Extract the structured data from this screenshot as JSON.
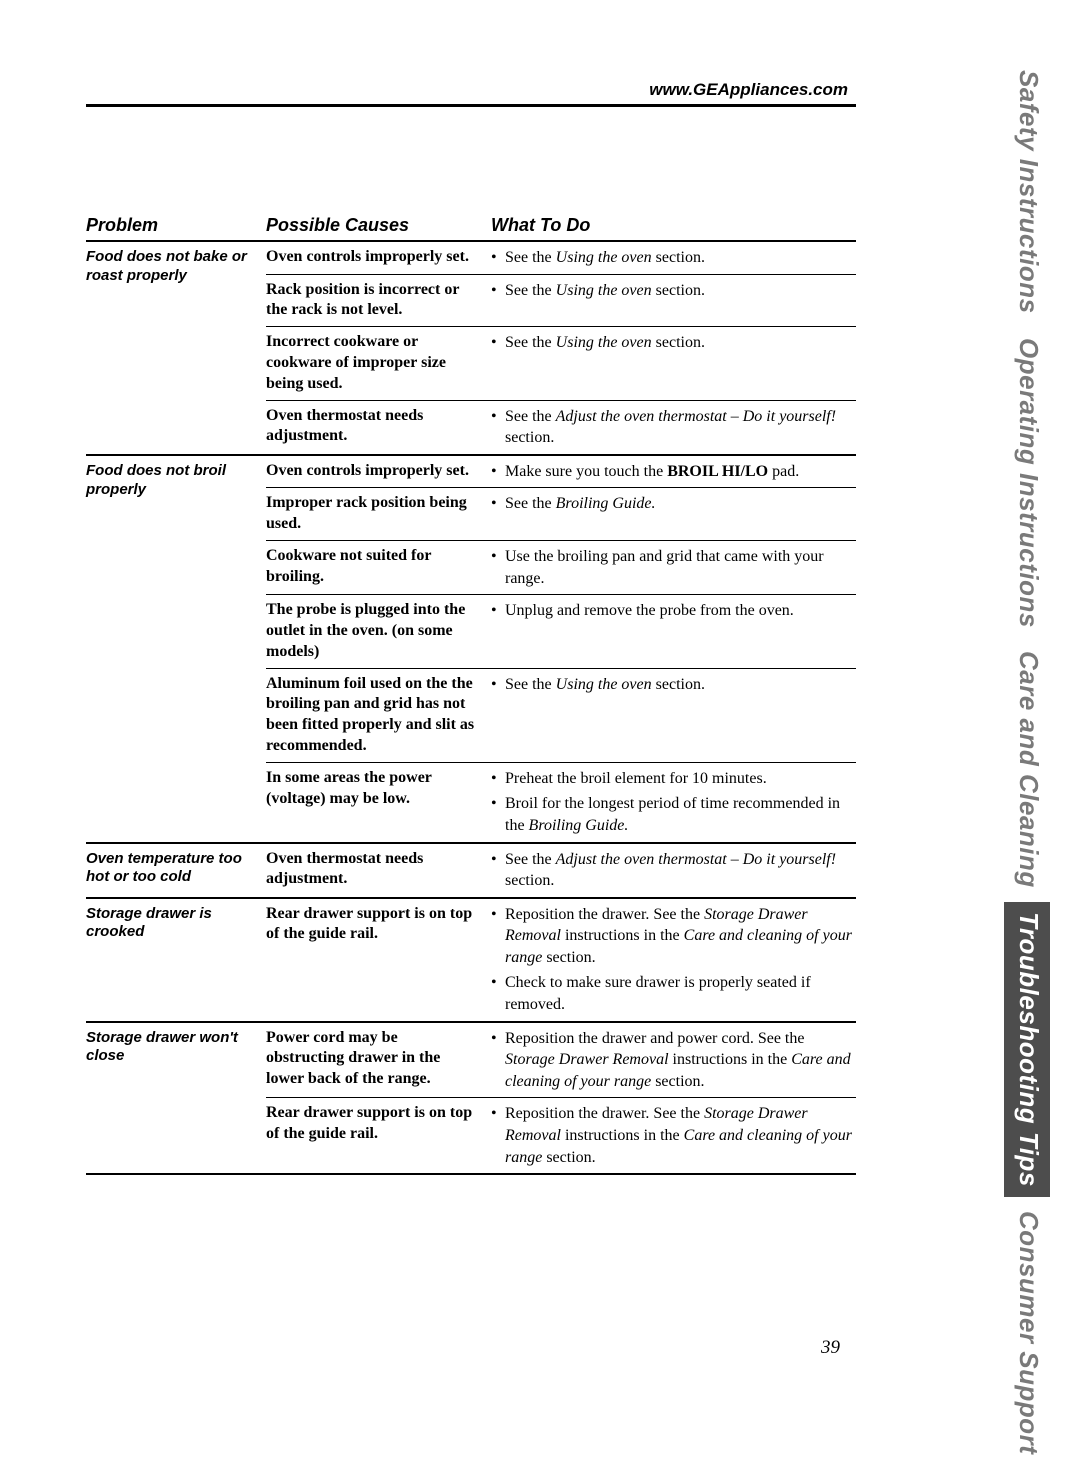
{
  "url": "www.GEAppliances.com",
  "page_number": "39",
  "columns": {
    "problem": "Problem",
    "cause": "Possible Causes",
    "what": "What To Do"
  },
  "side_tabs": [
    {
      "label": "Safety Instructions",
      "active": false
    },
    {
      "label": "Operating Instructions",
      "active": false
    },
    {
      "label": "Care and Cleaning",
      "active": false
    },
    {
      "label": "Troubleshooting Tips",
      "active": true
    },
    {
      "label": "Consumer Support",
      "active": false
    }
  ],
  "groups": [
    {
      "problem": "Food does not bake or roast properly",
      "rows": [
        {
          "cause": "Oven controls improperly set.",
          "what": [
            [
              {
                "t": "See the "
              },
              {
                "t": "Using the oven",
                "i": true
              },
              {
                "t": " section."
              }
            ]
          ]
        },
        {
          "cause": "Rack position is incorrect or the rack is not level.",
          "what": [
            [
              {
                "t": "See the "
              },
              {
                "t": "Using the oven",
                "i": true
              },
              {
                "t": " section."
              }
            ]
          ]
        },
        {
          "cause": "Incorrect cookware or cookware of improper size being used.",
          "what": [
            [
              {
                "t": "See the "
              },
              {
                "t": "Using the oven",
                "i": true
              },
              {
                "t": " section."
              }
            ]
          ]
        },
        {
          "cause": "Oven thermostat needs adjustment.",
          "what": [
            [
              {
                "t": "See the "
              },
              {
                "t": "Adjust the oven thermostat – Do it yourself!",
                "i": true
              },
              {
                "t": " section."
              }
            ]
          ]
        }
      ]
    },
    {
      "problem": "Food does not broil properly",
      "rows": [
        {
          "cause": "Oven controls improperly set.",
          "what": [
            [
              {
                "t": "Make sure you touch the "
              },
              {
                "t": "BROIL HI/LO",
                "b": true
              },
              {
                "t": " pad."
              }
            ]
          ]
        },
        {
          "cause": "Improper rack position being used.",
          "what": [
            [
              {
                "t": "See the "
              },
              {
                "t": "Broiling Guide.",
                "i": true
              }
            ]
          ]
        },
        {
          "cause": "Cookware not suited for broiling.",
          "what": [
            [
              {
                "t": "Use the broiling pan and grid that came with your range."
              }
            ]
          ]
        },
        {
          "cause": "The probe is plugged into the outlet in the oven. (on some models)",
          "what": [
            [
              {
                "t": "Unplug and remove the probe from the oven."
              }
            ]
          ]
        },
        {
          "cause": "Aluminum foil used on the the broiling pan and grid has not been fitted properly and slit as recommended.",
          "what": [
            [
              {
                "t": "See the "
              },
              {
                "t": "Using the oven",
                "i": true
              },
              {
                "t": " section."
              }
            ]
          ]
        },
        {
          "cause": "In some areas the power (voltage) may be low.",
          "what": [
            [
              {
                "t": "Preheat the broil element for 10 minutes."
              }
            ],
            [
              {
                "t": "Broil for the longest period of time recommended in the "
              },
              {
                "t": "Broiling Guide.",
                "i": true
              }
            ]
          ]
        }
      ]
    },
    {
      "problem": "Oven temperature too hot or too cold",
      "rows": [
        {
          "cause": "Oven thermostat needs adjustment.",
          "what": [
            [
              {
                "t": "See the "
              },
              {
                "t": "Adjust the oven thermostat – Do it yourself!",
                "i": true
              },
              {
                "t": " section."
              }
            ]
          ]
        }
      ]
    },
    {
      "problem": "Storage drawer is crooked",
      "rows": [
        {
          "cause": "Rear drawer support is on top of the guide rail.",
          "what": [
            [
              {
                "t": "Reposition the drawer. See the "
              },
              {
                "t": "Storage Drawer Removal",
                "i": true
              },
              {
                "t": " instructions in the "
              },
              {
                "t": "Care and cleaning of your range",
                "i": true
              },
              {
                "t": " section."
              }
            ],
            [
              {
                "t": "Check to make sure drawer is properly seated if removed."
              }
            ]
          ]
        }
      ]
    },
    {
      "problem": "Storage drawer won't close",
      "rows": [
        {
          "cause": "Power cord may be obstructing drawer in the lower back of the range.",
          "what": [
            [
              {
                "t": "Reposition the drawer and power cord. See the "
              },
              {
                "t": "Storage Drawer Removal",
                "i": true
              },
              {
                "t": " instructions in the "
              },
              {
                "t": "Care and cleaning of your range",
                "i": true
              },
              {
                "t": " section."
              }
            ]
          ]
        },
        {
          "cause": "Rear drawer support is on top of the guide rail.",
          "what": [
            [
              {
                "t": "Reposition the drawer. See the "
              },
              {
                "t": "Storage Drawer Removal",
                "i": true
              },
              {
                "t": " instructions in the "
              },
              {
                "t": "Care and cleaning of your range",
                "i": true
              },
              {
                "t": " section."
              }
            ]
          ]
        }
      ]
    }
  ]
}
